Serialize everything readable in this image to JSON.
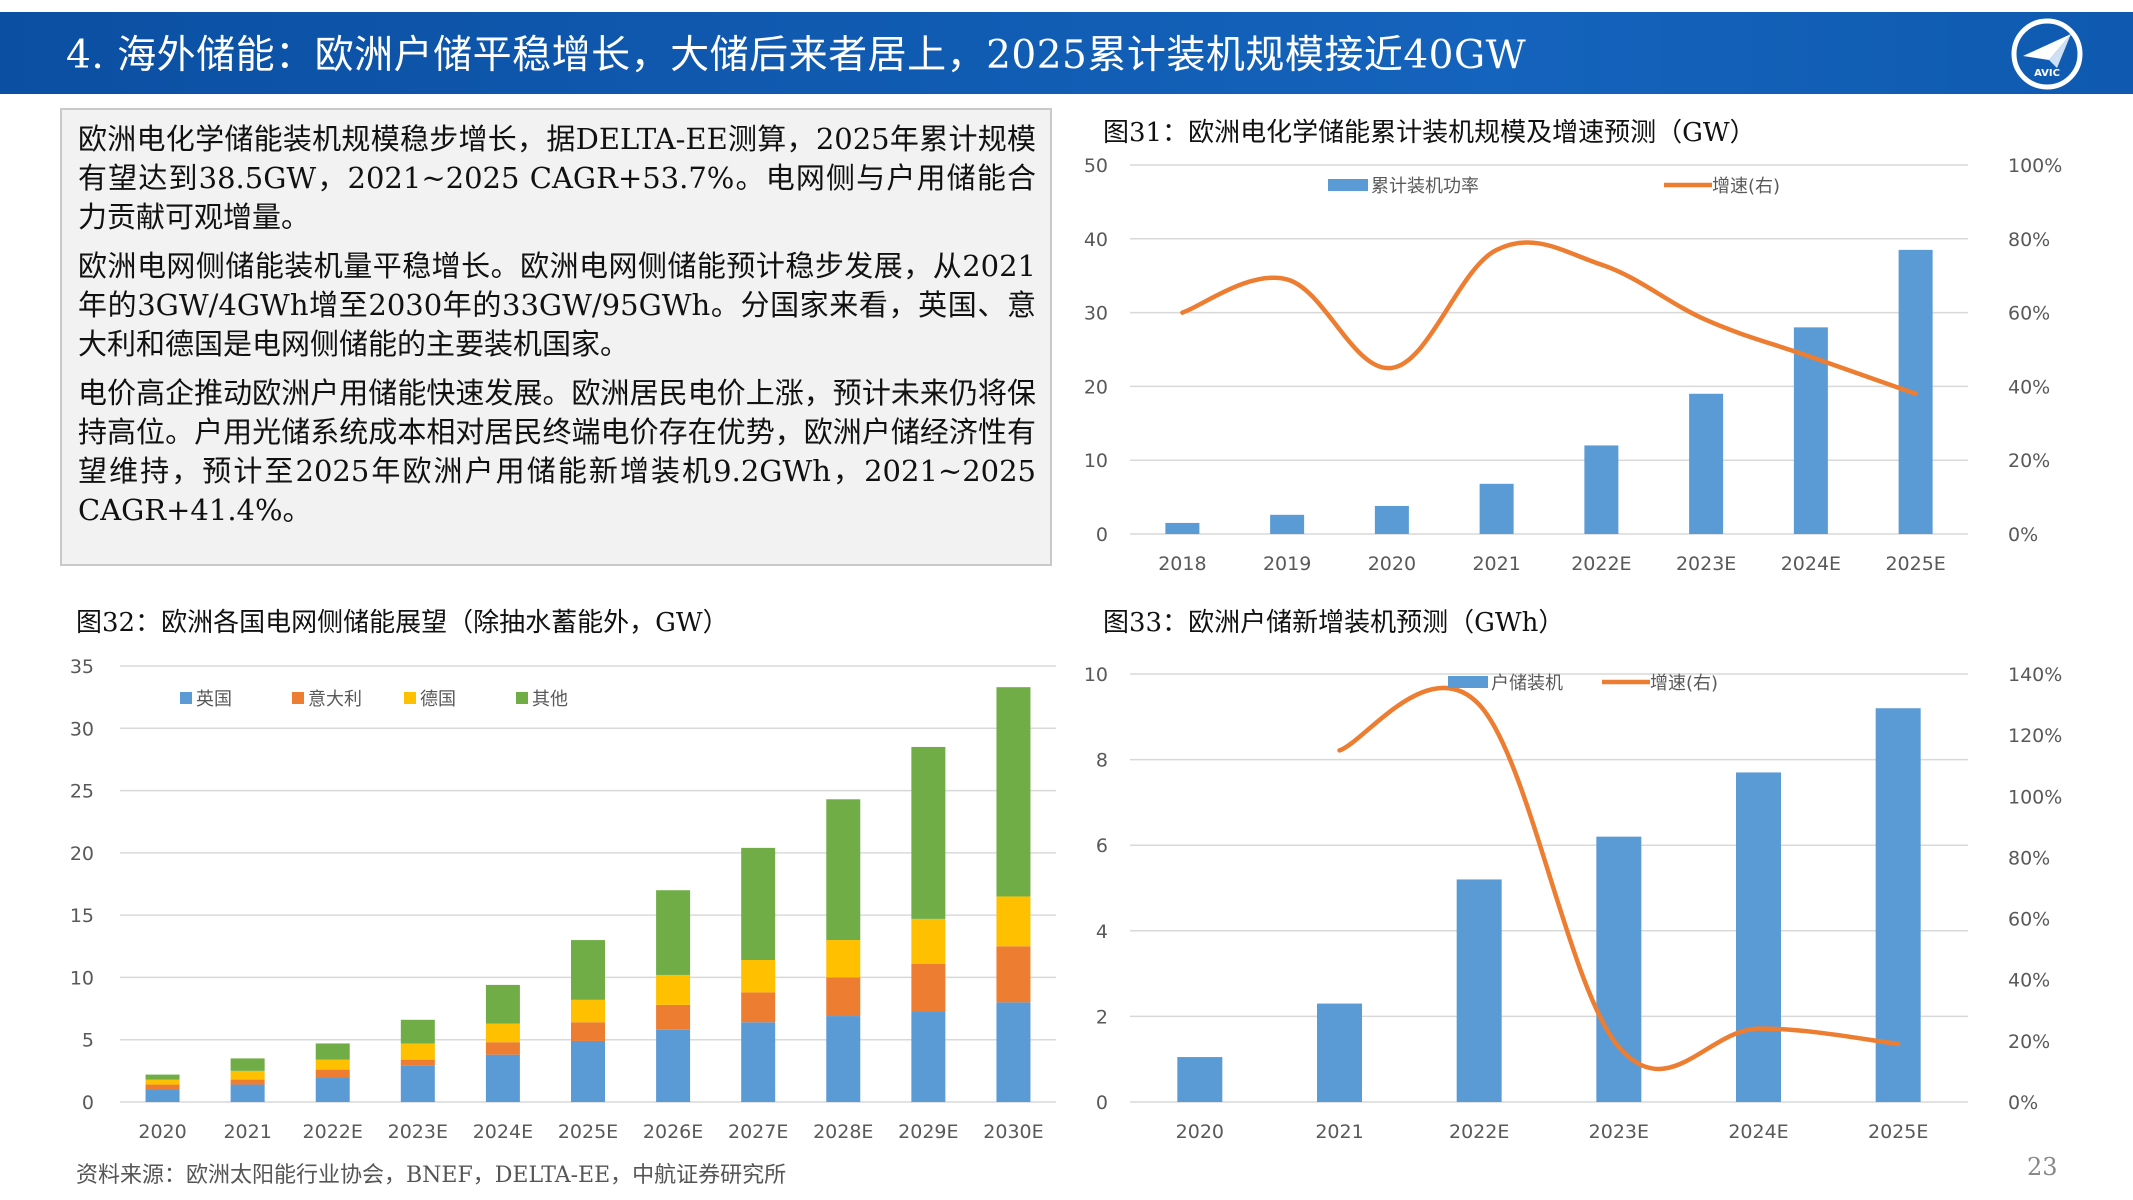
{
  "header": {
    "title": "4. 海外储能：欧洲户储平稳增长，大储后来者居上，2025累计装机规模接近40GW",
    "logo_text": "AVIC"
  },
  "textbox": {
    "paragraphs": [
      "欧洲电化学储能装机规模稳步增长，据DELTA-EE测算，2025年累计规模有望达到38.5GW，2021~2025 CAGR+53.7%。电网侧与户用储能合力贡献可观增量。",
      "欧洲电网侧储能装机量平稳增长。欧洲电网侧储能预计稳步发展，从2021年的3GW/4GWh增至2030年的33GW/95GWh。分国家来看，英国、意大利和德国是电网侧储能的主要装机国家。",
      "电价高企推动欧洲户用储能快速发展。欧洲居民电价上涨，预计未来仍将保持高位。户用光储系统成本相对居民终端电价存在优势，欧洲户储经济性有望维持，预计至2025年欧洲户用储能新增装机9.2GWh，2021~2025 CAGR+41.4%。"
    ]
  },
  "captions": {
    "fig31": "图31：欧洲电化学储能累计装机规模及增速预测（GW）",
    "fig32": "图32：欧洲各国电网侧储能展望（除抽水蓄能外，GW）",
    "fig33": "图33：欧洲户储新增装机预测（GWh）"
  },
  "footer": {
    "source": "资料来源：欧洲太阳能行业协会，BNEF，DELTA-EE，中航证券研究所",
    "page": "23"
  },
  "colors": {
    "blue": "#5b9bd5",
    "orange": "#ed7d31",
    "yellow": "#ffc000",
    "green": "#70ad47",
    "header": "#0b4fa2"
  },
  "chart_data": [
    {
      "id": "fig31",
      "type": "bar",
      "categories": [
        "2018",
        "2019",
        "2020",
        "2021",
        "2022E",
        "2023E",
        "2024E",
        "2025E"
      ],
      "series": [
        {
          "name": "累计装机功率",
          "kind": "bar",
          "axis": "left",
          "values": [
            1.5,
            2.6,
            3.8,
            6.8,
            12.0,
            19.0,
            28.0,
            38.5
          ]
        },
        {
          "name": "增速(右)",
          "kind": "line",
          "axis": "right",
          "values": [
            0.6,
            0.69,
            0.45,
            0.77,
            0.73,
            0.58,
            0.48,
            0.38
          ]
        }
      ],
      "ylim": [
        0,
        50
      ],
      "yticks": [
        "0",
        "10",
        "20",
        "30",
        "40",
        "50"
      ],
      "y2lim": [
        0,
        1
      ],
      "y2ticks": [
        "0%",
        "20%",
        "40%",
        "60%",
        "80%",
        "100%"
      ],
      "grid": true,
      "legend": "top"
    },
    {
      "id": "fig32",
      "type": "bar",
      "stacked": true,
      "categories": [
        "2020",
        "2021",
        "2022E",
        "2023E",
        "2024E",
        "2025E",
        "2026E",
        "2027E",
        "2028E",
        "2029E",
        "2030E"
      ],
      "series": [
        {
          "name": "英国",
          "values": [
            1.0,
            1.4,
            2.0,
            2.9,
            3.8,
            4.9,
            5.8,
            6.4,
            6.9,
            7.3,
            8.0
          ]
        },
        {
          "name": "意大利",
          "values": [
            0.4,
            0.4,
            0.6,
            0.5,
            1.0,
            1.5,
            2.0,
            2.4,
            3.1,
            3.8,
            4.5
          ]
        },
        {
          "name": "德国",
          "values": [
            0.4,
            0.7,
            0.8,
            1.3,
            1.5,
            1.8,
            2.4,
            2.6,
            3.0,
            3.6,
            4.0
          ]
        },
        {
          "name": "其他",
          "values": [
            0.4,
            1.0,
            1.3,
            1.9,
            3.1,
            4.8,
            6.8,
            9.0,
            11.3,
            13.8,
            16.8
          ]
        }
      ],
      "ylim": [
        0,
        35
      ],
      "yticks": [
        "0",
        "5",
        "10",
        "15",
        "20",
        "25",
        "30",
        "35"
      ],
      "grid": true,
      "legend": "top-left"
    },
    {
      "id": "fig33",
      "type": "bar",
      "categories": [
        "2020",
        "2021",
        "2022E",
        "2023E",
        "2024E",
        "2025E"
      ],
      "series": [
        {
          "name": "户储装机",
          "kind": "bar",
          "axis": "left",
          "values": [
            1.05,
            2.3,
            5.2,
            6.2,
            7.7,
            9.2
          ]
        },
        {
          "name": "增速(右)",
          "kind": "line",
          "axis": "right",
          "values": [
            null,
            1.15,
            1.3,
            0.18,
            0.24,
            0.19
          ]
        }
      ],
      "ylim": [
        0,
        10
      ],
      "yticks": [
        "0",
        "2",
        "4",
        "6",
        "8",
        "10"
      ],
      "y2lim": [
        0,
        1.4
      ],
      "y2ticks": [
        "0%",
        "20%",
        "40%",
        "60%",
        "80%",
        "100%",
        "120%",
        "140%"
      ],
      "grid": true,
      "legend": "top"
    }
  ]
}
